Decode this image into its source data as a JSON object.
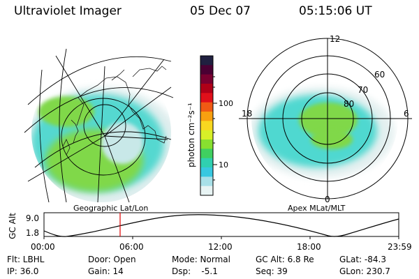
{
  "header": {
    "instrument": "Ultraviolet Imager",
    "date": "05 Dec 07",
    "time": "05:15:06 UT"
  },
  "colorbar": {
    "unit_label": "photon cm⁻²s⁻¹",
    "ticks": [
      "100",
      "10"
    ],
    "colors": [
      "#202040",
      "#4a0033",
      "#7a0030",
      "#b00018",
      "#e0101a",
      "#f05a14",
      "#f8a010",
      "#f8d820",
      "#d8f028",
      "#88e030",
      "#40d060",
      "#30d0b0",
      "#38c8e0",
      "#a8e0e8",
      "#e8f4f4"
    ]
  },
  "left_map": {
    "caption": "Geographic Lat/Lon"
  },
  "right_map": {
    "caption": "Apex MLat/MLT",
    "lat_labels": [
      "60",
      "70",
      "80"
    ],
    "mlt_labels": [
      "12",
      "18",
      "6",
      "0"
    ]
  },
  "altitude_plot": {
    "ylabel": "GC Alt",
    "y_ticks": [
      "9.0",
      "1.8"
    ],
    "x_ticks": [
      "00:00",
      "06:00",
      "12:00",
      "18:00",
      "23:59"
    ],
    "cursor_color": "#e00000"
  },
  "info": {
    "row1": {
      "flt": "Flt: LBHL",
      "door": "Door: Open",
      "mode": "Mode: Normal",
      "gcalt": "GC Alt: 6.8 Re",
      "glat": "GLat: -84.3"
    },
    "row2": {
      "ip": "IP: 36.0",
      "gain": "Gain: 14",
      "dsp": "Dsp:    -5.1",
      "seq": "Seq: 39",
      "glon": "GLon: 230.7"
    }
  }
}
